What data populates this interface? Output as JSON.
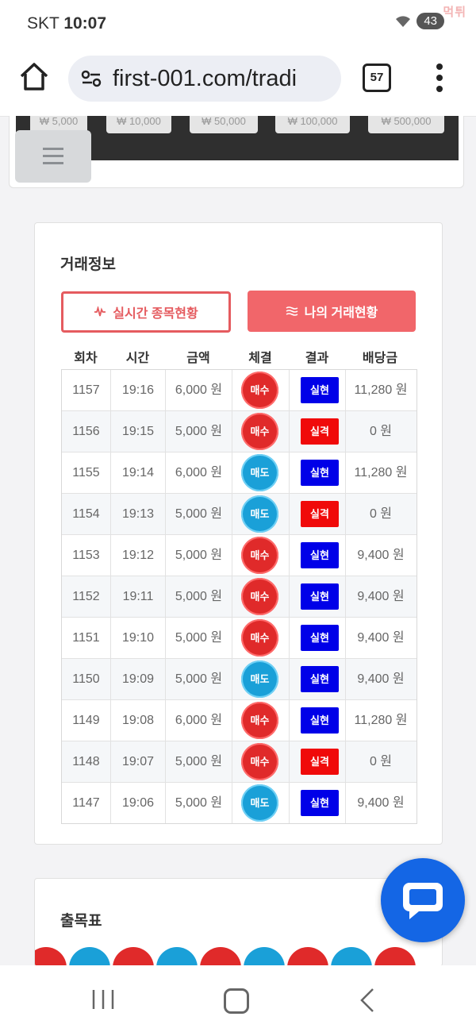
{
  "status_bar": {
    "carrier": "SKT",
    "time": "10:07",
    "battery": "43",
    "watermark": "먹튀"
  },
  "browser": {
    "url": "first-001.com/tradi",
    "tab_count": "57"
  },
  "top_card": {
    "amount_buttons": [
      "₩ 5,000",
      "₩ 10,000",
      "₩ 50,000",
      "₩ 100,000",
      "₩ 500,000"
    ]
  },
  "trade_info": {
    "title": "거래정보",
    "btn_realtime": "실시간 종목현황",
    "btn_mytrade": "나의 거래현황",
    "headers": [
      "회차",
      "시간",
      "금액",
      "체결",
      "결과",
      "배당금"
    ],
    "rows": [
      {
        "round": "1157",
        "time": "19:16",
        "amount": "6,000 원",
        "side": "매수",
        "side_type": "buy",
        "result": "실현",
        "result_type": "win",
        "payout": "11,280 원"
      },
      {
        "round": "1156",
        "time": "19:15",
        "amount": "5,000 원",
        "side": "매수",
        "side_type": "buy",
        "result": "실격",
        "result_type": "lose",
        "payout": "0 원"
      },
      {
        "round": "1155",
        "time": "19:14",
        "amount": "6,000 원",
        "side": "매도",
        "side_type": "sell",
        "result": "실현",
        "result_type": "win",
        "payout": "11,280 원"
      },
      {
        "round": "1154",
        "time": "19:13",
        "amount": "5,000 원",
        "side": "매도",
        "side_type": "sell",
        "result": "실격",
        "result_type": "lose",
        "payout": "0 원"
      },
      {
        "round": "1153",
        "time": "19:12",
        "amount": "5,000 원",
        "side": "매수",
        "side_type": "buy",
        "result": "실현",
        "result_type": "win",
        "payout": "9,400 원"
      },
      {
        "round": "1152",
        "time": "19:11",
        "amount": "5,000 원",
        "side": "매수",
        "side_type": "buy",
        "result": "실현",
        "result_type": "win",
        "payout": "9,400 원"
      },
      {
        "round": "1151",
        "time": "19:10",
        "amount": "5,000 원",
        "side": "매수",
        "side_type": "buy",
        "result": "실현",
        "result_type": "win",
        "payout": "9,400 원"
      },
      {
        "round": "1150",
        "time": "19:09",
        "amount": "5,000 원",
        "side": "매도",
        "side_type": "sell",
        "result": "실현",
        "result_type": "win",
        "payout": "9,400 원"
      },
      {
        "round": "1149",
        "time": "19:08",
        "amount": "6,000 원",
        "side": "매수",
        "side_type": "buy",
        "result": "실현",
        "result_type": "win",
        "payout": "11,280 원"
      },
      {
        "round": "1148",
        "time": "19:07",
        "amount": "5,000 원",
        "side": "매수",
        "side_type": "buy",
        "result": "실격",
        "result_type": "lose",
        "payout": "0 원"
      },
      {
        "round": "1147",
        "time": "19:06",
        "amount": "5,000 원",
        "side": "매도",
        "side_type": "sell",
        "result": "실현",
        "result_type": "win",
        "payout": "9,400 원"
      }
    ]
  },
  "draw_chart": {
    "title": "출목표",
    "balls": [
      "red",
      "blue",
      "red",
      "blue",
      "red",
      "blue",
      "red",
      "blue",
      "red"
    ]
  },
  "colors": {
    "buy": "#e02a2a",
    "sell": "#1aa0d8",
    "win": "#0000e8",
    "lose": "#f00a0a",
    "accent": "#f1666a",
    "chat_fab": "#1466e5"
  },
  "icons": {
    "home": "home-icon",
    "site_settings": "tune-icon",
    "menu": "more-vert-icon",
    "realtime": "pulse-icon",
    "mytrade": "equal-lines-icon",
    "chat": "chat-bubble-icon"
  }
}
